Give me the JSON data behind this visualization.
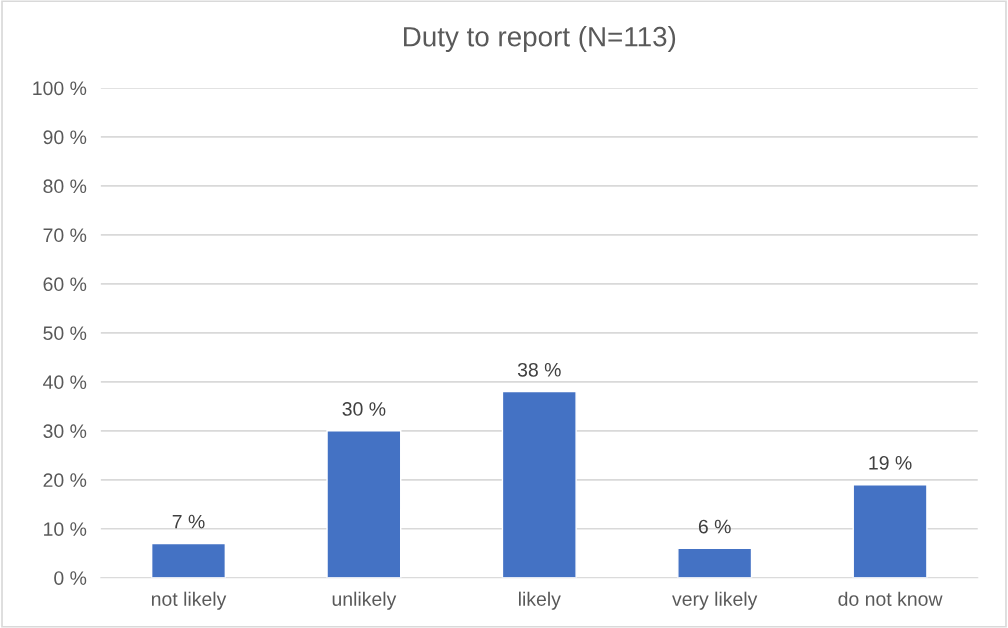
{
  "chart_data": {
    "type": "bar",
    "title": "Duty to report (N=113)",
    "categories": [
      "not likely",
      "unlikely",
      "likely",
      "very likely",
      "do not know"
    ],
    "values": [
      7,
      30,
      38,
      6,
      19
    ],
    "value_labels": [
      "7 %",
      "30 %",
      "38 %",
      "6 %",
      "19 %"
    ],
    "color": "#4472c4",
    "ylim": [
      0,
      100
    ],
    "yticks": [
      {
        "value": 0,
        "label": "0 %"
      },
      {
        "value": 10,
        "label": "10 %"
      },
      {
        "value": 20,
        "label": "20 %"
      },
      {
        "value": 30,
        "label": "30 %"
      },
      {
        "value": 40,
        "label": "40 %"
      },
      {
        "value": 50,
        "label": "50 %"
      },
      {
        "value": 60,
        "label": "60 %"
      },
      {
        "value": 70,
        "label": "70 %"
      },
      {
        "value": 80,
        "label": "80 %"
      },
      {
        "value": 90,
        "label": "90 %"
      },
      {
        "value": 100,
        "label": "100 %"
      }
    ],
    "grid": "y"
  }
}
